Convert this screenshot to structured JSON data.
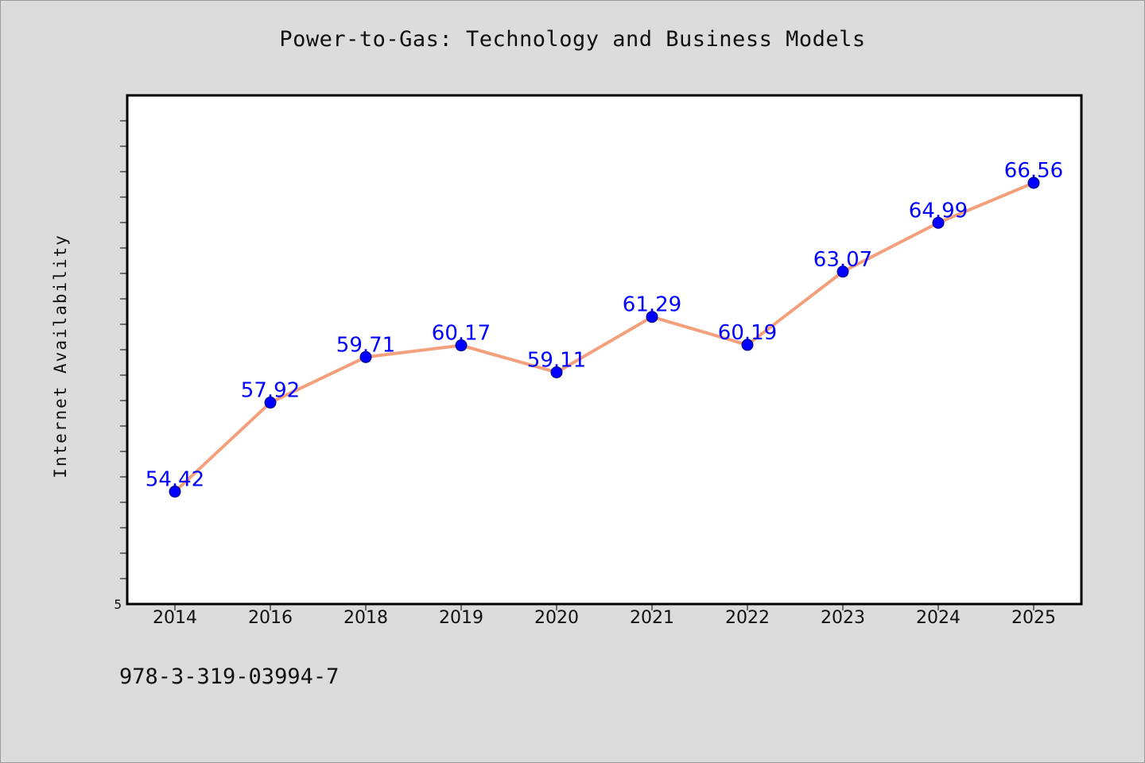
{
  "chart_data": {
    "type": "line",
    "title": "Power-to-Gas: Technology and Business Models",
    "ylabel": "Internet Availability",
    "xlabel": "",
    "categories": [
      "2014",
      "2016",
      "2018",
      "2019",
      "2020",
      "2021",
      "2022",
      "2023",
      "2024",
      "2025"
    ],
    "series": [
      {
        "values": [
          54.42,
          57.92,
          59.71,
          60.17,
          59.11,
          61.29,
          60.19,
          63.07,
          64.99,
          66.56
        ],
        "value_labels": [
          "54.42",
          "57.92",
          "59.71",
          "60.17",
          "59.11",
          "61.29",
          "60.19",
          "63.07",
          "64.99",
          "66.56"
        ],
        "line_color": "#f4a07c",
        "marker_color": "#0000ff",
        "label_color": "#0000ff"
      }
    ],
    "ylim": [
      50,
      70
    ],
    "y_tick_labels": [
      "5"
    ],
    "grid": false,
    "legend": "none"
  },
  "footer": {
    "text": "978-3-319-03994-7"
  },
  "colors": {
    "background": "#dcdcdc",
    "plot_background": "#ffffff",
    "axis": "#000000"
  }
}
